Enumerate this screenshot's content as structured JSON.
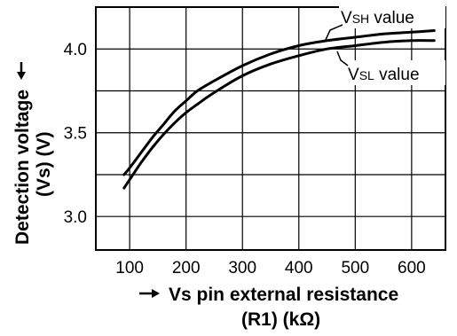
{
  "chart_data": {
    "type": "line",
    "xlabel_line1": "Vs pin external resistance",
    "xlabel_line2": "(R1) (kΩ)",
    "ylabel_line1": "Detection voltage",
    "ylabel_line2": "(Vs) (V)",
    "xlim": [
      40,
      660
    ],
    "ylim": [
      2.8,
      4.25
    ],
    "x_ticks": [
      100,
      200,
      300,
      400,
      500,
      600
    ],
    "y_ticks": [
      3.0,
      3.5,
      4.0
    ],
    "x_tick_labels": [
      "100",
      "200",
      "300",
      "400",
      "500",
      "600"
    ],
    "y_tick_labels": [
      "3.0",
      "3.5",
      "4.0"
    ],
    "y_grid": [
      3.0,
      3.25,
      3.5,
      3.75,
      4.0,
      4.25
    ],
    "grid": true,
    "series": [
      {
        "name_main": "V",
        "name_sub": "SH",
        "name_suffix": " value",
        "points": [
          [
            90,
            3.25
          ],
          [
            100,
            3.29
          ],
          [
            120,
            3.38
          ],
          [
            140,
            3.47
          ],
          [
            160,
            3.55
          ],
          [
            180,
            3.63
          ],
          [
            200,
            3.69
          ],
          [
            220,
            3.75
          ],
          [
            250,
            3.81
          ],
          [
            300,
            3.9
          ],
          [
            350,
            3.97
          ],
          [
            400,
            4.02
          ],
          [
            450,
            4.05
          ],
          [
            500,
            4.07
          ],
          [
            550,
            4.09
          ],
          [
            600,
            4.1
          ],
          [
            640,
            4.11
          ]
        ]
      },
      {
        "name_main": "V",
        "name_sub": "SL",
        "name_suffix": " value",
        "points": [
          [
            90,
            3.17
          ],
          [
            100,
            3.22
          ],
          [
            120,
            3.32
          ],
          [
            140,
            3.41
          ],
          [
            160,
            3.49
          ],
          [
            180,
            3.56
          ],
          [
            200,
            3.62
          ],
          [
            220,
            3.67
          ],
          [
            250,
            3.74
          ],
          [
            300,
            3.84
          ],
          [
            350,
            3.91
          ],
          [
            400,
            3.96
          ],
          [
            450,
            4.0
          ],
          [
            500,
            4.02
          ],
          [
            550,
            4.04
          ],
          [
            600,
            4.05
          ],
          [
            640,
            4.05
          ]
        ]
      }
    ]
  }
}
